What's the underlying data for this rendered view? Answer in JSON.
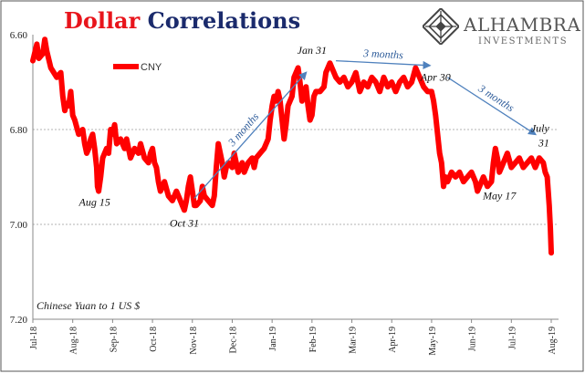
{
  "title": {
    "part1": "Dollar",
    "part2": "Correlations"
  },
  "brand": {
    "name": "ALHAMBRA",
    "subtitle": "INVESTMENTS"
  },
  "colors": {
    "line": "#ff0000",
    "title_red": "#e8141b",
    "title_navy": "#1a2a6c",
    "arrow": "#4f81bd",
    "annotation_blue": "#2e5c9a"
  },
  "chart_data": {
    "type": "line",
    "y_inverted": true,
    "ylim": [
      6.6,
      7.2
    ],
    "y_ticks": [
      "6.60",
      "6.80",
      "7.00",
      "7.20"
    ],
    "y_gridlines": [
      6.8,
      7.0
    ],
    "x_ticks": [
      "Jul-18",
      "Aug-18",
      "Sep-18",
      "Oct-18",
      "Nov-18",
      "Dec-18",
      "Jan-19",
      "Feb-19",
      "Mar-19",
      "Apr-19",
      "May-19",
      "Jun-19",
      "Jul-19",
      "Aug-19"
    ],
    "xlabel": "",
    "ylabel": "",
    "axis_note": "Chinese Yuan to 1 US $",
    "legend": {
      "label": "CNY",
      "position": "top-left"
    },
    "series": [
      {
        "name": "CNY",
        "points": [
          [
            0,
            6.655
          ],
          [
            0.1,
            6.62
          ],
          [
            0.15,
            6.65
          ],
          [
            0.25,
            6.64
          ],
          [
            0.3,
            6.61
          ],
          [
            0.35,
            6.635
          ],
          [
            0.45,
            6.67
          ],
          [
            0.6,
            6.69
          ],
          [
            0.7,
            6.68
          ],
          [
            0.75,
            6.73
          ],
          [
            0.8,
            6.76
          ],
          [
            0.85,
            6.745
          ],
          [
            0.9,
            6.75
          ],
          [
            0.95,
            6.72
          ],
          [
            1.0,
            6.77
          ],
          [
            1.05,
            6.78
          ],
          [
            1.15,
            6.81
          ],
          [
            1.25,
            6.8
          ],
          [
            1.3,
            6.83
          ],
          [
            1.35,
            6.85
          ],
          [
            1.4,
            6.84
          ],
          [
            1.45,
            6.82
          ],
          [
            1.5,
            6.81
          ],
          [
            1.55,
            6.84
          ],
          [
            1.6,
            6.88
          ],
          [
            1.62,
            6.92
          ],
          [
            1.65,
            6.93
          ],
          [
            1.7,
            6.9
          ],
          [
            1.75,
            6.86
          ],
          [
            1.85,
            6.84
          ],
          [
            1.9,
            6.85
          ],
          [
            1.95,
            6.8
          ],
          [
            2.0,
            6.81
          ],
          [
            2.05,
            6.79
          ],
          [
            2.1,
            6.83
          ],
          [
            2.2,
            6.82
          ],
          [
            2.3,
            6.84
          ],
          [
            2.35,
            6.82
          ],
          [
            2.45,
            6.86
          ],
          [
            2.55,
            6.84
          ],
          [
            2.65,
            6.85
          ],
          [
            2.7,
            6.83
          ],
          [
            2.8,
            6.86
          ],
          [
            2.9,
            6.87
          ],
          [
            2.95,
            6.85
          ],
          [
            3.0,
            6.84
          ],
          [
            3.05,
            6.87
          ],
          [
            3.1,
            6.88
          ],
          [
            3.15,
            6.91
          ],
          [
            3.2,
            6.93
          ],
          [
            3.3,
            6.91
          ],
          [
            3.4,
            6.94
          ],
          [
            3.5,
            6.95
          ],
          [
            3.6,
            6.93
          ],
          [
            3.7,
            6.95
          ],
          [
            3.75,
            6.96
          ],
          [
            3.8,
            6.97
          ],
          [
            3.85,
            6.95
          ],
          [
            3.9,
            6.92
          ],
          [
            3.95,
            6.9
          ],
          [
            4.0,
            6.93
          ],
          [
            4.05,
            6.96
          ],
          [
            4.1,
            6.96
          ],
          [
            4.2,
            6.95
          ],
          [
            4.25,
            6.92
          ],
          [
            4.3,
            6.94
          ],
          [
            4.4,
            6.95
          ],
          [
            4.5,
            6.96
          ],
          [
            4.55,
            6.94
          ],
          [
            4.6,
            6.88
          ],
          [
            4.65,
            6.83
          ],
          [
            4.75,
            6.87
          ],
          [
            4.8,
            6.9
          ],
          [
            4.85,
            6.88
          ],
          [
            4.9,
            6.87
          ],
          [
            5.0,
            6.88
          ],
          [
            5.05,
            6.85
          ],
          [
            5.15,
            6.89
          ],
          [
            5.25,
            6.87
          ],
          [
            5.3,
            6.89
          ],
          [
            5.4,
            6.87
          ],
          [
            5.5,
            6.86
          ],
          [
            5.55,
            6.88
          ],
          [
            5.6,
            6.86
          ],
          [
            5.7,
            6.85
          ],
          [
            5.8,
            6.84
          ],
          [
            5.9,
            6.82
          ],
          [
            5.95,
            6.78
          ],
          [
            6.0,
            6.75
          ],
          [
            6.05,
            6.73
          ],
          [
            6.1,
            6.74
          ],
          [
            6.15,
            6.72
          ],
          [
            6.2,
            6.74
          ],
          [
            6.25,
            6.78
          ],
          [
            6.3,
            6.82
          ],
          [
            6.35,
            6.79
          ],
          [
            6.4,
            6.75
          ],
          [
            6.5,
            6.73
          ],
          [
            6.55,
            6.69
          ],
          [
            6.6,
            6.68
          ],
          [
            6.65,
            6.67
          ],
          [
            6.7,
            6.7
          ],
          [
            6.75,
            6.74
          ],
          [
            6.8,
            6.73
          ],
          [
            6.85,
            6.71
          ],
          [
            6.9,
            6.75
          ],
          [
            6.95,
            6.78
          ],
          [
            7.0,
            6.77
          ],
          [
            7.05,
            6.73
          ],
          [
            7.1,
            6.72
          ],
          [
            7.2,
            6.72
          ],
          [
            7.3,
            6.71
          ],
          [
            7.35,
            6.68
          ],
          [
            7.45,
            6.66
          ],
          [
            7.5,
            6.67
          ],
          [
            7.6,
            6.69
          ],
          [
            7.7,
            6.7
          ],
          [
            7.8,
            6.69
          ],
          [
            7.9,
            6.71
          ],
          [
            8.0,
            6.7
          ],
          [
            8.1,
            6.68
          ],
          [
            8.2,
            6.72
          ],
          [
            8.3,
            6.7
          ],
          [
            8.4,
            6.71
          ],
          [
            8.5,
            6.69
          ],
          [
            8.6,
            6.7
          ],
          [
            8.7,
            6.72
          ],
          [
            8.8,
            6.69
          ],
          [
            8.9,
            6.71
          ],
          [
            9.0,
            6.7
          ],
          [
            9.1,
            6.72
          ],
          [
            9.2,
            6.7
          ],
          [
            9.3,
            6.69
          ],
          [
            9.4,
            6.71
          ],
          [
            9.5,
            6.7
          ],
          [
            9.6,
            6.67
          ],
          [
            9.7,
            6.69
          ],
          [
            9.8,
            6.71
          ],
          [
            9.9,
            6.72
          ],
          [
            10.0,
            6.72
          ],
          [
            10.05,
            6.74
          ],
          [
            10.1,
            6.77
          ],
          [
            10.15,
            6.81
          ],
          [
            10.2,
            6.85
          ],
          [
            10.25,
            6.87
          ],
          [
            10.3,
            6.92
          ],
          [
            10.35,
            6.9
          ],
          [
            10.4,
            6.91
          ],
          [
            10.5,
            6.89
          ],
          [
            10.6,
            6.9
          ],
          [
            10.7,
            6.89
          ],
          [
            10.8,
            6.91
          ],
          [
            10.9,
            6.9
          ],
          [
            11.0,
            6.89
          ],
          [
            11.1,
            6.91
          ],
          [
            11.15,
            6.93
          ],
          [
            11.2,
            6.92
          ],
          [
            11.3,
            6.9
          ],
          [
            11.4,
            6.92
          ],
          [
            11.5,
            6.91
          ],
          [
            11.55,
            6.87
          ],
          [
            11.6,
            6.84
          ],
          [
            11.65,
            6.86
          ],
          [
            11.7,
            6.89
          ],
          [
            11.8,
            6.87
          ],
          [
            11.9,
            6.85
          ],
          [
            12.0,
            6.88
          ],
          [
            12.1,
            6.87
          ],
          [
            12.2,
            6.86
          ],
          [
            12.3,
            6.88
          ],
          [
            12.4,
            6.87
          ],
          [
            12.5,
            6.86
          ],
          [
            12.6,
            6.88
          ],
          [
            12.7,
            6.86
          ],
          [
            12.8,
            6.87
          ],
          [
            12.85,
            6.89
          ],
          [
            12.9,
            6.9
          ],
          [
            12.95,
            6.96
          ],
          [
            12.98,
            7.01
          ],
          [
            13.0,
            7.06
          ]
        ]
      }
    ],
    "annotations": [
      {
        "text": "Aug 15",
        "x": 1.55,
        "y": 6.93,
        "anchor": "middle",
        "dy": 16
      },
      {
        "text": "Oct 31",
        "x": 3.8,
        "y": 6.97,
        "anchor": "middle",
        "dy": 18
      },
      {
        "text": "Jan 31",
        "x": 7.0,
        "y": 6.66,
        "anchor": "middle",
        "dy": -10
      },
      {
        "text": "Apr 30",
        "x": 10.1,
        "y": 6.67,
        "anchor": "middle",
        "dy": 14
      },
      {
        "text": "May 17",
        "x": 11.7,
        "y": 6.92,
        "anchor": "middle",
        "dy": 14
      },
      {
        "text": "July",
        "x": 12.95,
        "y": 6.82,
        "anchor": "end",
        "dy": -8
      },
      {
        "text": "31",
        "x": 12.95,
        "y": 6.82,
        "anchor": "end",
        "dy": 8
      }
    ],
    "arrows": [
      {
        "label": "3 months",
        "from": [
          4.05,
          6.945
        ],
        "to": [
          6.85,
          6.68
        ]
      },
      {
        "label": "3 months",
        "from": [
          7.6,
          6.655
        ],
        "to": [
          9.95,
          6.665
        ]
      },
      {
        "label": "3 months",
        "from": [
          10.4,
          6.69
        ],
        "to": [
          12.6,
          6.81
        ]
      }
    ]
  }
}
